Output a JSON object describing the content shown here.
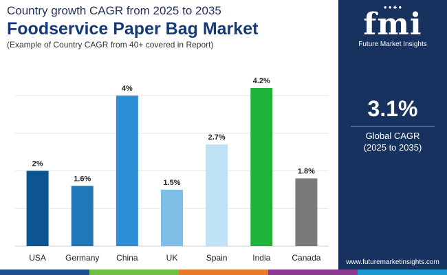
{
  "header": {
    "subtitle": "Country growth CAGR from 2025 to 2035",
    "title": "Foodservice Paper Bag Market",
    "note": "(Example of Country CAGR from 40+ covered in Report)"
  },
  "chart_data": {
    "type": "bar",
    "categories": [
      "USA",
      "Germany",
      "China",
      "UK",
      "Spain",
      "India",
      "Canada"
    ],
    "values": [
      2.0,
      1.6,
      4.0,
      1.5,
      2.7,
      4.2,
      1.8
    ],
    "value_labels": [
      "2%",
      "1.6%",
      "4%",
      "1.5%",
      "2.7%",
      "4.2%",
      "1.8%"
    ],
    "colors": [
      "#0d5592",
      "#2178b8",
      "#2f8fd6",
      "#7dbde6",
      "#bfe2f4",
      "#1db53a",
      "#7a7a7a"
    ],
    "ylim": [
      0,
      4.2
    ],
    "grid": true,
    "title": "",
    "xlabel": "",
    "ylabel": ""
  },
  "side_panel": {
    "logo": "fmi",
    "logo_icons": "● ● ♣ ●",
    "brand": "Future Market Insights",
    "cagr_value": "3.1%",
    "cagr_label": "Global CAGR",
    "cagr_period": "(2025 to 2035)",
    "website": "www.futuremarketinsights.com",
    "background_color": "#17325f"
  },
  "bottom_bar_colors": [
    "#1d4f8c",
    "#6fbf44",
    "#e8792b",
    "#8c3a8f",
    "#1b96cf"
  ]
}
